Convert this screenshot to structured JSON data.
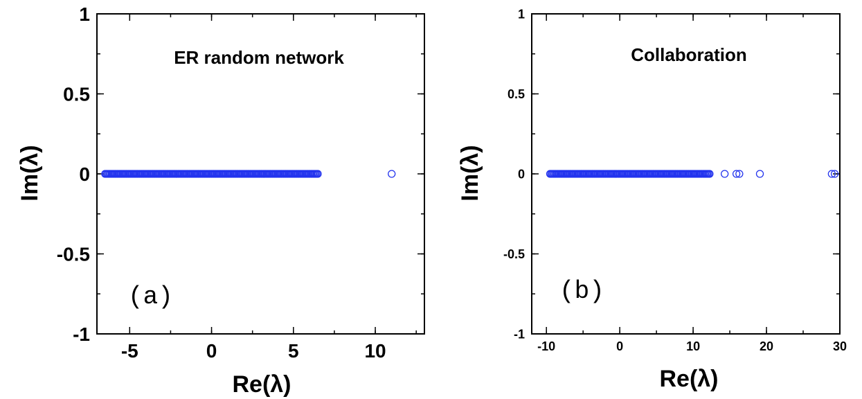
{
  "chart_data": [
    {
      "type": "scatter",
      "title": "ER random network",
      "panel_label": "(a)",
      "xlabel": "Re(λ)",
      "ylabel": "Im(λ)",
      "xlim": [
        -7,
        13
      ],
      "ylim": [
        -1,
        1
      ],
      "xticks": [
        -5,
        0,
        5,
        10
      ],
      "yticks": [
        1,
        0.5,
        0,
        -0.5,
        -1
      ],
      "grid": false,
      "marker": "open-circle",
      "color": "#2233ee",
      "series": [
        {
          "dense_range": [
            -6.5,
            6.5
          ],
          "y": 0,
          "points": [
            {
              "x": 11.0,
              "y": 0
            }
          ]
        }
      ]
    },
    {
      "type": "scatter",
      "title": "Collaboration",
      "panel_label": "(b)",
      "xlabel": "Re(λ)",
      "ylabel": "Im(λ)",
      "xlim": [
        -12,
        30
      ],
      "ylim": [
        -1,
        1
      ],
      "xticks": [
        -10,
        0,
        10,
        20,
        30
      ],
      "yticks": [
        1,
        0.5,
        0,
        -0.5,
        -1
      ],
      "grid": false,
      "marker": "open-circle",
      "color": "#2233ee",
      "series": [
        {
          "dense_range": [
            -9.5,
            12.3
          ],
          "y": 0,
          "points": [
            {
              "x": 14.3,
              "y": 0
            },
            {
              "x": 15.9,
              "y": 0
            },
            {
              "x": 16.3,
              "y": 0
            },
            {
              "x": 19.1,
              "y": 0
            },
            {
              "x": 28.9,
              "y": 0
            },
            {
              "x": 29.3,
              "y": 0
            }
          ]
        }
      ]
    }
  ]
}
